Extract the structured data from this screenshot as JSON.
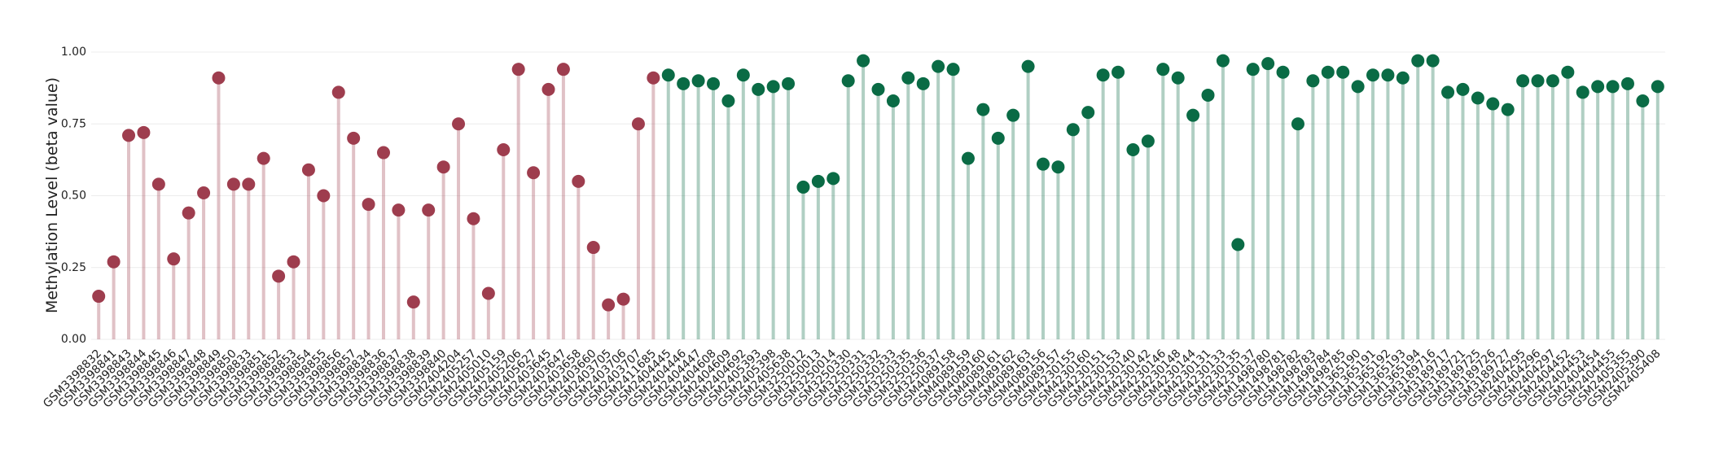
{
  "chart_data": {
    "type": "lollipop",
    "y_label": "Methylation Level (beta value)",
    "ylim": [
      0,
      1
    ],
    "yticks": [
      {
        "value": 0,
        "label": "0.00"
      },
      {
        "value": 0.25,
        "label": "0.25"
      },
      {
        "value": 0.5,
        "label": "0.50"
      },
      {
        "value": 0.75,
        "label": "0.75"
      },
      {
        "value": 1,
        "label": "1.00"
      }
    ],
    "grid": true,
    "categories": [
      "GSM3398832",
      "GSM3398841",
      "GSM3398843",
      "GSM3398844",
      "GSM3398845",
      "GSM3398846",
      "GSM3398847",
      "GSM3398848",
      "GSM3398849",
      "GSM3398850",
      "GSM3398833",
      "GSM3398851",
      "GSM3398852",
      "GSM3398853",
      "GSM3398854",
      "GSM3398855",
      "GSM3398856",
      "GSM3398857",
      "GSM3398834",
      "GSM3398836",
      "GSM3398837",
      "GSM3398838",
      "GSM3398839",
      "GSM3398840",
      "GSM2404204",
      "GSM2405257",
      "GSM2405010",
      "GSM2405159",
      "GSM2405206",
      "GSM2405627",
      "GSM2403645",
      "GSM2403647",
      "GSM2403658",
      "GSM2403660",
      "GSM2403705",
      "GSM2403706",
      "GSM2403707",
      "GSM2411685",
      "GSM2404445",
      "GSM2404446",
      "GSM2404447",
      "GSM2404608",
      "GSM2404609",
      "GSM2404692",
      "GSM2405393",
      "GSM2405398",
      "GSM2405638",
      "GSM3250012",
      "GSM3250013",
      "GSM3250014",
      "GSM3250330",
      "GSM3250331",
      "GSM3250332",
      "GSM3250333",
      "GSM3250335",
      "GSM3250336",
      "GSM3250337",
      "GSM4089158",
      "GSM4089159",
      "GSM4089160",
      "GSM4089161",
      "GSM4089162",
      "GSM4089163",
      "GSM4089156",
      "GSM4089157",
      "GSM4230155",
      "GSM4230160",
      "GSM4230151",
      "GSM4230153",
      "GSM4230140",
      "GSM4230142",
      "GSM4230146",
      "GSM4230148",
      "GSM4230144",
      "GSM4230131",
      "GSM4230133",
      "GSM4230135",
      "GSM4230137",
      "GSM1498780",
      "GSM1498781",
      "GSM1498782",
      "GSM1498783",
      "GSM1498784",
      "GSM1498785",
      "GSM1365190",
      "GSM1365191",
      "GSM1365192",
      "GSM1365193",
      "GSM1365194",
      "GSM3189716",
      "GSM3189717",
      "GSM3189721",
      "GSM3189725",
      "GSM3189726",
      "GSM3189727",
      "GSM2404295",
      "GSM2404296",
      "GSM2404297",
      "GSM2404452",
      "GSM2404453",
      "GSM2404454",
      "GSM2404455",
      "GSM2405355",
      "GSM2405390",
      "GSM2405408"
    ],
    "series": [
      {
        "color": "#9e3d4e",
        "values": [
          0.15,
          0.27,
          0.71,
          0.72,
          0.54,
          0.28,
          0.44,
          0.51,
          0.91,
          0.54,
          0.54,
          0.63,
          0.22,
          0.27,
          0.59,
          0.5,
          0.86,
          0.7,
          0.47,
          0.65,
          0.45,
          0.13,
          0.45,
          0.6,
          0.75,
          0.42,
          0.16,
          0.66,
          0.94,
          0.58,
          0.87,
          0.94,
          0.55,
          0.32,
          0.12,
          0.14,
          0.75,
          0.91,
          null,
          null,
          null,
          null,
          null,
          null,
          null,
          null,
          null,
          null,
          null,
          null,
          null,
          null,
          null,
          null,
          null,
          null,
          null,
          null,
          null,
          null,
          null,
          null,
          null,
          null,
          null,
          null,
          null,
          null,
          null,
          null,
          null,
          null,
          null,
          null,
          null,
          null,
          null,
          null,
          null,
          null,
          null,
          null,
          null,
          null,
          null,
          null,
          null,
          null,
          null,
          null,
          null,
          null,
          null,
          null,
          null,
          null,
          null,
          null,
          null,
          null,
          null,
          null,
          null,
          null,
          null
        ]
      },
      {
        "color": "#0a6b45",
        "values": [
          null,
          null,
          null,
          null,
          null,
          null,
          null,
          null,
          null,
          null,
          null,
          null,
          null,
          null,
          null,
          null,
          null,
          null,
          null,
          null,
          null,
          null,
          null,
          null,
          null,
          null,
          null,
          null,
          null,
          null,
          null,
          null,
          null,
          null,
          null,
          null,
          null,
          null,
          0.92,
          0.89,
          0.9,
          0.89,
          0.83,
          0.92,
          0.87,
          0.88,
          0.89,
          0.53,
          0.55,
          0.56,
          0.9,
          0.97,
          0.87,
          0.83,
          0.91,
          0.89,
          0.95,
          0.94,
          0.63,
          0.8,
          0.7,
          0.78,
          0.95,
          0.61,
          0.6,
          0.73,
          0.79,
          0.92,
          0.93,
          0.66,
          0.69,
          0.94,
          0.91,
          0.78,
          0.85,
          0.97,
          0.33,
          0.94,
          0.96,
          0.93,
          0.75,
          0.9,
          0.93,
          0.93,
          0.88,
          0.92,
          0.92,
          0.91,
          0.97,
          0.97,
          0.86,
          0.87,
          0.84,
          0.82,
          0.8,
          0.9,
          0.9,
          0.9,
          0.93,
          0.86,
          0.88,
          0.88,
          0.89,
          0.83,
          0.88
        ]
      }
    ]
  }
}
